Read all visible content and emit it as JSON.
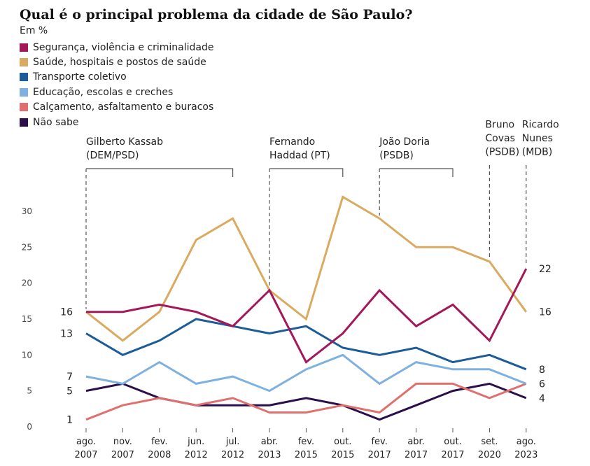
{
  "title": "Qual é o principal problema da cidade de São Paulo?",
  "subtitle": "Em %",
  "chart_data": {
    "type": "line",
    "title": "Qual é o principal problema da cidade de São Paulo?",
    "ylabel": "Em %",
    "ylim": [
      0,
      30
    ],
    "yticks": [
      0,
      5,
      10,
      15,
      20,
      25,
      30
    ],
    "grid": false,
    "legend_position": "top-left",
    "categories": [
      {
        "month": "ago.",
        "year": "2007"
      },
      {
        "month": "nov.",
        "year": "2007"
      },
      {
        "month": "fev.",
        "year": "2008"
      },
      {
        "month": "jun.",
        "year": "2012"
      },
      {
        "month": "jul.",
        "year": "2012"
      },
      {
        "month": "abr.",
        "year": "2013"
      },
      {
        "month": "fev.",
        "year": "2015"
      },
      {
        "month": "out.",
        "year": "2015"
      },
      {
        "month": "fev.",
        "year": "2017"
      },
      {
        "month": "abr.",
        "year": "2017"
      },
      {
        "month": "out.",
        "year": "2017"
      },
      {
        "month": "set.",
        "year": "2020"
      },
      {
        "month": "ago.",
        "year": "2023"
      }
    ],
    "series": [
      {
        "name": "Segurança, violência e criminalidade",
        "color": "#a4185a",
        "values": [
          16,
          16,
          17,
          16,
          14,
          19,
          9,
          13,
          19,
          14,
          17,
          12,
          22
        ],
        "start_label": "16",
        "end_label": "22"
      },
      {
        "name": "Saúde, hospitais e postos de saúde",
        "color": "#d9aa60",
        "values": [
          16,
          12,
          16,
          26,
          29,
          19,
          15,
          32,
          29,
          25,
          25,
          23,
          16
        ],
        "start_label": "",
        "end_label": "16"
      },
      {
        "name": "Transporte coletivo",
        "color": "#1c5c98",
        "values": [
          13,
          10,
          12,
          15,
          14,
          13,
          14,
          11,
          10,
          11,
          9,
          10,
          8
        ],
        "start_label": "13",
        "end_label": "8"
      },
      {
        "name": "Educação, escolas e creches",
        "color": "#7fb1de",
        "values": [
          7,
          6,
          9,
          6,
          7,
          5,
          8,
          10,
          6,
          9,
          8,
          8,
          6
        ],
        "start_label": "7",
        "end_label": "6"
      },
      {
        "name": "Calçamento, asfaltamento e buracos",
        "color": "#e0706e",
        "values": [
          1,
          3,
          4,
          3,
          4,
          2,
          2,
          3,
          2,
          6,
          6,
          4,
          6
        ],
        "start_label": "1",
        "end_label": ""
      },
      {
        "name": "Não sabe",
        "color": "#2b0f4a",
        "values": [
          5,
          6,
          4,
          3,
          3,
          3,
          4,
          3,
          1,
          3,
          5,
          6,
          4
        ],
        "start_label": "5",
        "end_label": "4"
      }
    ],
    "annotations": [
      {
        "lines": [
          "Gilberto Kassab",
          "(DEM/PSD)"
        ],
        "start_index": 0,
        "end_index": 4
      },
      {
        "lines": [
          "Fernando",
          "Haddad (PT)"
        ],
        "start_index": 5,
        "end_index": 7
      },
      {
        "lines": [
          "João Doria",
          "(PSDB)"
        ],
        "start_index": 8,
        "end_index": 10
      },
      {
        "lines": [
          "Bruno",
          "Covas",
          "(PSDB)"
        ],
        "start_index": 11,
        "end_index": 11
      },
      {
        "lines": [
          "Ricardo",
          "Nunes",
          "(MDB)"
        ],
        "start_index": 12,
        "end_index": 12
      }
    ]
  }
}
